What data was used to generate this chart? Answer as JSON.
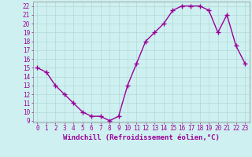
{
  "x": [
    0,
    1,
    2,
    3,
    4,
    5,
    6,
    7,
    8,
    9,
    10,
    11,
    12,
    13,
    14,
    15,
    16,
    17,
    18,
    19,
    20,
    21,
    22,
    23
  ],
  "y": [
    15,
    14.5,
    13,
    12,
    11,
    10,
    9.5,
    9.5,
    9,
    9.5,
    13,
    15.5,
    18,
    19,
    20,
    21.5,
    22,
    22,
    22,
    21.5,
    19,
    21,
    17.5,
    15.5
  ],
  "line_color": "#990099",
  "marker": "+",
  "markersize": 4,
  "linewidth": 1.0,
  "xlabel": "Windchill (Refroidissement éolien,°C)",
  "xlabel_fontsize": 6.5,
  "ylabel_ticks": [
    9,
    10,
    11,
    12,
    13,
    14,
    15,
    16,
    17,
    18,
    19,
    20,
    21,
    22
  ],
  "xlim": [
    -0.5,
    23.5
  ],
  "ylim": [
    8.8,
    22.5
  ],
  "bg_color": "#cff0f0",
  "grid_color": "#b0d8d8",
  "tick_fontsize": 5.5,
  "spine_color": "#888888"
}
